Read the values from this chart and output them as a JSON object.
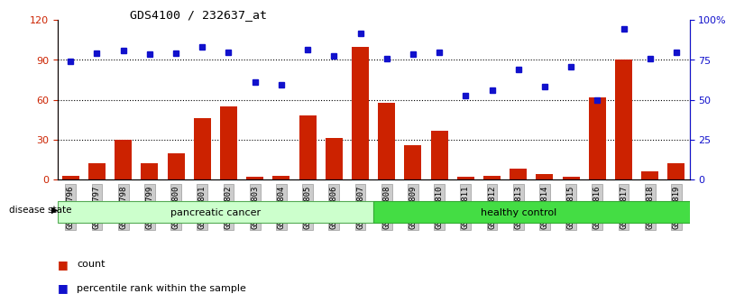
{
  "title": "GDS4100 / 232637_at",
  "categories": [
    "GSM356796",
    "GSM356797",
    "GSM356798",
    "GSM356799",
    "GSM356800",
    "GSM356801",
    "GSM356802",
    "GSM356803",
    "GSM356804",
    "GSM356805",
    "GSM356806",
    "GSM356807",
    "GSM356808",
    "GSM356809",
    "GSM356810",
    "GSM356811",
    "GSM356812",
    "GSM356813",
    "GSM356814",
    "GSM356815",
    "GSM356816",
    "GSM356817",
    "GSM356818",
    "GSM356819"
  ],
  "bar_values": [
    3,
    12,
    30,
    12,
    20,
    46,
    55,
    2,
    3,
    48,
    31,
    100,
    58,
    26,
    37,
    2,
    3,
    8,
    4,
    2,
    62,
    90,
    6,
    12
  ],
  "dot_values_pct": [
    89,
    95,
    97,
    94,
    95,
    100,
    96,
    73,
    71,
    98,
    93,
    110,
    91,
    94,
    96,
    63,
    67,
    83,
    70,
    85,
    60,
    113,
    91,
    96
  ],
  "group1_label": "pancreatic cancer",
  "group2_label": "healthy control",
  "group1_count": 12,
  "group2_count": 12,
  "bar_color": "#cc2200",
  "dot_color": "#1111cc",
  "group1_bg": "#ccffcc",
  "group2_bg": "#44dd44",
  "left_yticks": [
    0,
    30,
    60,
    90,
    120
  ],
  "right_ytick_vals": [
    0,
    30,
    60,
    90,
    120
  ],
  "right_ytick_labels": [
    "0",
    "25",
    "50",
    "75",
    "100%"
  ],
  "ylim": [
    0,
    120
  ],
  "disease_state_label": "disease state",
  "legend_count_label": "count",
  "legend_pct_label": "percentile rank within the sample",
  "dotted_lines": [
    30,
    60,
    90
  ],
  "bg_color": "#ffffff",
  "tick_bg": "#cccccc",
  "tick_border": "#999999"
}
